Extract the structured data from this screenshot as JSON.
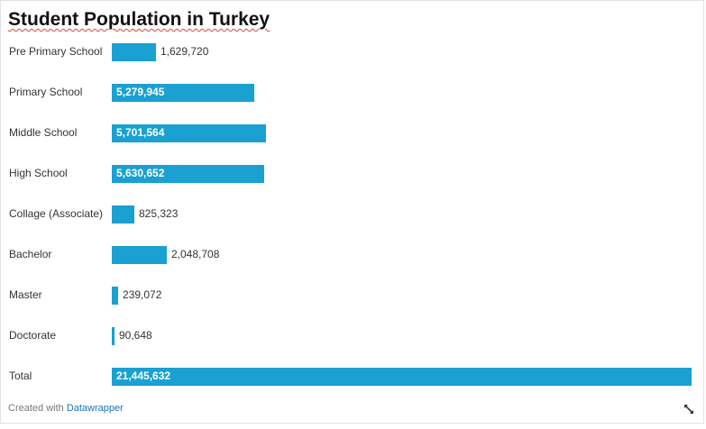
{
  "chart_data": {
    "type": "bar",
    "orientation": "horizontal",
    "title": "Student Population in Turkey",
    "categories": [
      "Pre Primary School",
      "Primary School",
      "Middle School",
      "High School",
      "Collage (Associate)",
      "Bachelor",
      "Master",
      "Doctorate",
      "Total"
    ],
    "values": [
      1629720,
      5279945,
      5701564,
      5630652,
      825323,
      2048708,
      239072,
      90648,
      21445632
    ],
    "value_labels": [
      "1,629,720",
      "5,279,945",
      "5,701,564",
      "5,630,652",
      "825,323",
      "2,048,708",
      "239,072",
      "90,648",
      "21,445,632"
    ],
    "xlim": [
      0,
      21445632
    ],
    "grid": false,
    "legend": "none",
    "bar_color": "#1aa0d1"
  },
  "footer": {
    "prefix": "Created with ",
    "link": "Datawrapper"
  },
  "icons": {
    "expand": "expand-icon"
  }
}
